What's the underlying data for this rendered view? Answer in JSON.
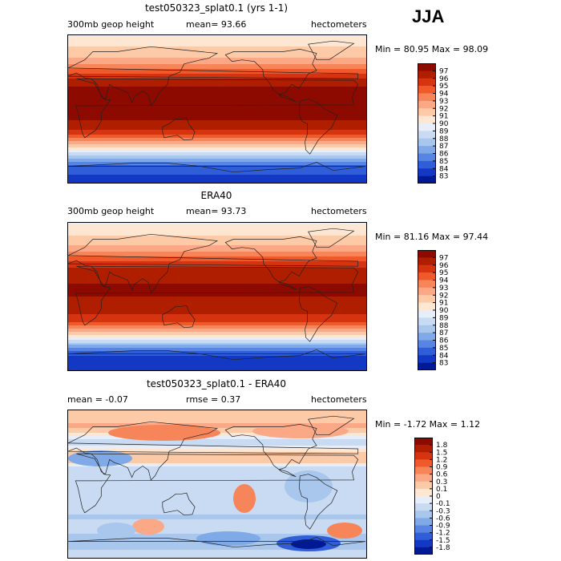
{
  "season": "JJA",
  "chart_data": [
    {
      "type": "heatmap",
      "title": "test050323_splat0.1 (yrs 1-1)",
      "variable": "300mb geop height",
      "mean_text": "mean=  93.66",
      "units": "hectometers",
      "minmax_text": "Min =  80.95 Max =  98.09",
      "colorbar_labels": [
        "97",
        "96",
        "95",
        "94",
        "93",
        "92",
        "91",
        "90",
        "89",
        "88",
        "87",
        "86",
        "85",
        "84",
        "83"
      ],
      "colorbar_colors": [
        "#8c0a00",
        "#b01e00",
        "#d63310",
        "#f05a2a",
        "#f7855a",
        "#fba886",
        "#fdcaa8",
        "#fde6d2",
        "#e7eef9",
        "#c9dbf2",
        "#a9c6ed",
        "#7fa9e7",
        "#5885e2",
        "#2f5ed8",
        "#1238c4",
        "#001a96"
      ],
      "lat_profile": [
        [
          90,
          89.8
        ],
        [
          80,
          90.8
        ],
        [
          70,
          91.4
        ],
        [
          60,
          92.2
        ],
        [
          50,
          93.6
        ],
        [
          40,
          95.6
        ],
        [
          30,
          96.8
        ],
        [
          20,
          97.4
        ],
        [
          10,
          97.6
        ],
        [
          0,
          97.5
        ],
        [
          -10,
          97.2
        ],
        [
          -20,
          96.6
        ],
        [
          -30,
          95.4
        ],
        [
          -40,
          93.0
        ],
        [
          -50,
          90.2
        ],
        [
          -60,
          87.0
        ],
        [
          -70,
          84.8
        ],
        [
          -80,
          84.0
        ],
        [
          -90,
          83.8
        ]
      ]
    },
    {
      "type": "heatmap",
      "title": "ERA40",
      "variable": "300mb geop height",
      "mean_text": "mean=  93.73",
      "units": "hectometers",
      "minmax_text": "Min =  81.16 Max =  97.44",
      "colorbar_labels": [
        "97",
        "96",
        "95",
        "94",
        "93",
        "92",
        "91",
        "90",
        "89",
        "88",
        "87",
        "86",
        "85",
        "84",
        "83"
      ],
      "colorbar_colors": [
        "#8c0a00",
        "#b01e00",
        "#d63310",
        "#f05a2a",
        "#f7855a",
        "#fba886",
        "#fdcaa8",
        "#fde6d2",
        "#e7eef9",
        "#c9dbf2",
        "#a9c6ed",
        "#7fa9e7",
        "#5885e2",
        "#2f5ed8",
        "#1238c4",
        "#001a96"
      ],
      "lat_profile": [
        [
          90,
          89.9
        ],
        [
          80,
          90.6
        ],
        [
          70,
          91.3
        ],
        [
          60,
          92.3
        ],
        [
          50,
          93.8
        ],
        [
          40,
          95.6
        ],
        [
          30,
          96.5
        ],
        [
          20,
          96.9
        ],
        [
          10,
          97.1
        ],
        [
          0,
          97.0
        ],
        [
          -10,
          96.8
        ],
        [
          -20,
          96.2
        ],
        [
          -30,
          95.1
        ],
        [
          -40,
          92.9
        ],
        [
          -50,
          90.1
        ],
        [
          -60,
          86.6
        ],
        [
          -70,
          84.2
        ],
        [
          -80,
          83.4
        ],
        [
          -90,
          83.2
        ]
      ]
    },
    {
      "type": "heatmap",
      "title": "test050323_splat0.1 - ERA40",
      "mean_text": "mean =   -0.07",
      "rmse_text": "rmse =    0.37",
      "units": "hectometers",
      "minmax_text": "Min =  -1.72 Max =    1.12",
      "colorbar_labels": [
        "1.8",
        "1.5",
        "1.2",
        "0.9",
        "0.6",
        "0.3",
        "0.1",
        "0",
        "-0.1",
        "-0.3",
        "-0.6",
        "-0.9",
        "-1.2",
        "-1.5",
        "-1.8"
      ],
      "colorbar_colors": [
        "#8c0a00",
        "#b01e00",
        "#d63310",
        "#f05a2a",
        "#f7855a",
        "#fba886",
        "#fdcaa8",
        "#fde6d2",
        "#e7eef9",
        "#c9dbf2",
        "#a9c6ed",
        "#7fa9e7",
        "#5885e2",
        "#2f5ed8",
        "#1238c4",
        "#001a96"
      ],
      "lat_profile": [
        [
          90,
          0.15
        ],
        [
          80,
          0.25
        ],
        [
          70,
          0.35
        ],
        [
          60,
          0.05
        ],
        [
          50,
          -0.2
        ],
        [
          40,
          0.1
        ],
        [
          30,
          0.3
        ],
        [
          20,
          -0.2
        ],
        [
          10,
          -0.25
        ],
        [
          0,
          -0.3
        ],
        [
          -10,
          -0.2
        ],
        [
          -20,
          -0.15
        ],
        [
          -30,
          -0.1
        ],
        [
          -40,
          -0.35
        ],
        [
          -50,
          -0.2
        ],
        [
          -60,
          -0.3
        ],
        [
          -70,
          -0.45
        ],
        [
          -80,
          -0.3
        ],
        [
          -90,
          -0.2
        ]
      ]
    }
  ]
}
